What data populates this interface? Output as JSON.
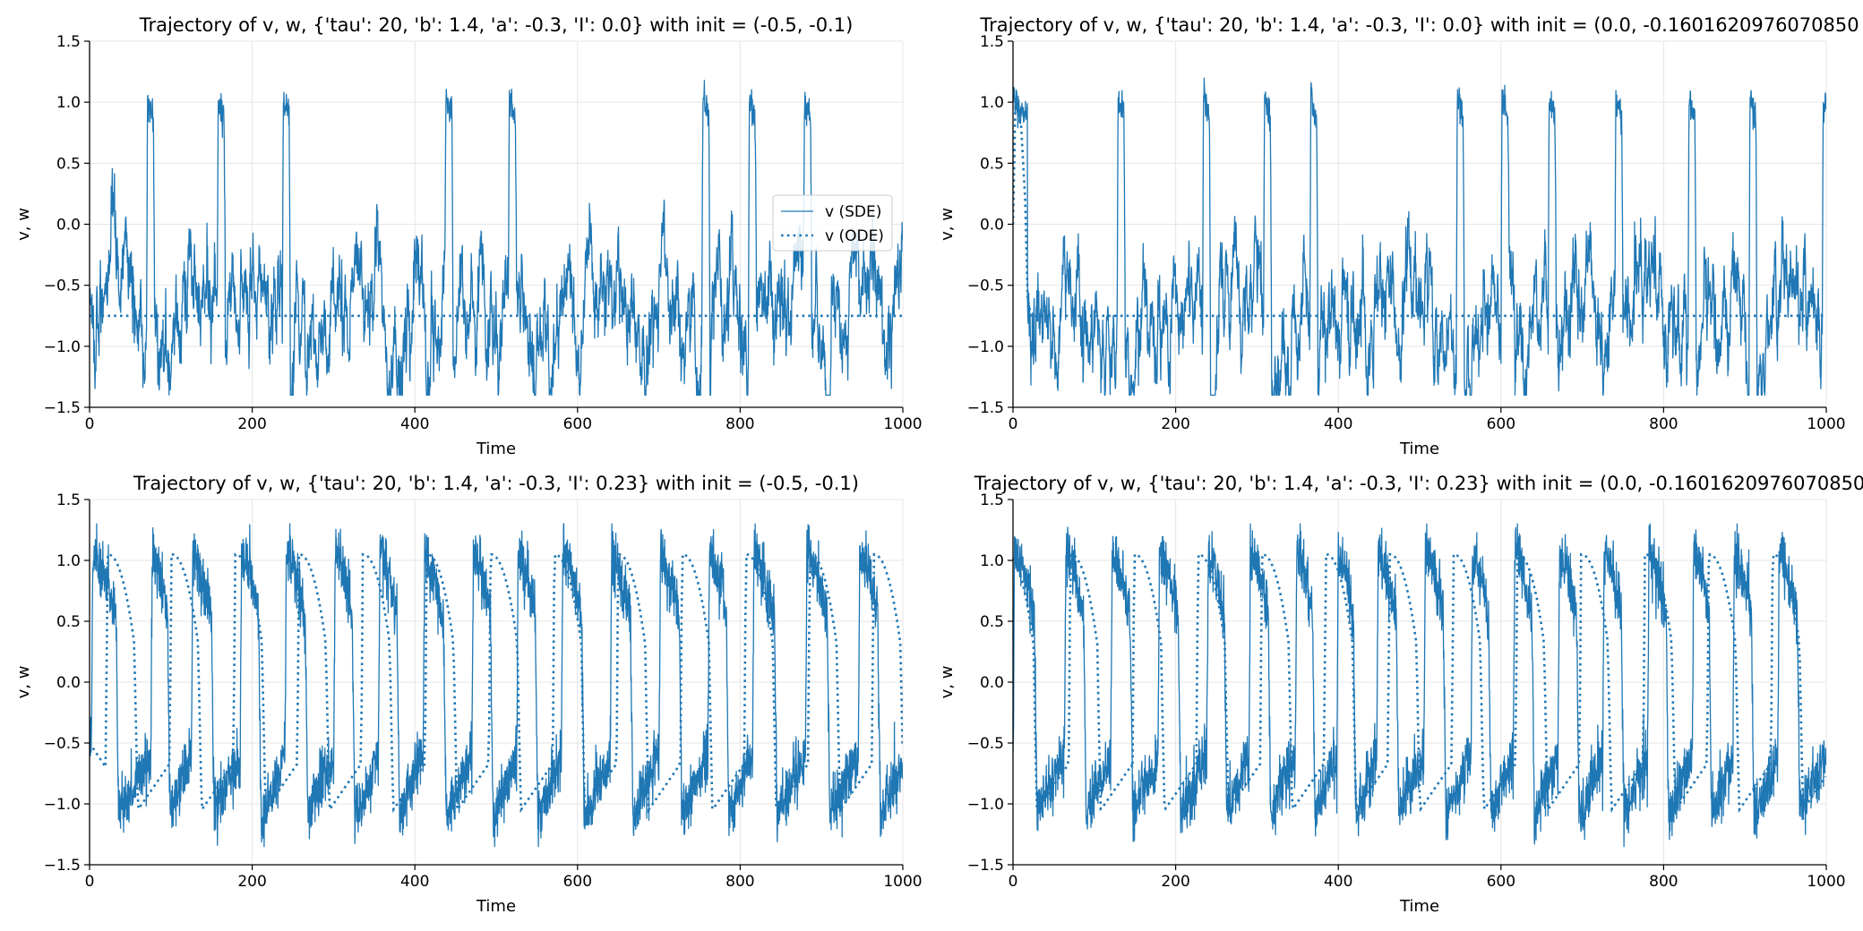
{
  "colors": {
    "line": "#1f77b4",
    "grid": "#e5e5e5",
    "axis": "#000000"
  },
  "chart_data": [
    {
      "type": "line",
      "title": "Trajectory of v, w, {'tau': 20, 'b': 1.4, 'a': -0.3, 'I': 0.0} with init = (-0.5, -0.1)",
      "xlabel": "Time",
      "ylabel": "v, w",
      "xlim": [
        0,
        1000
      ],
      "ylim": [
        -1.5,
        1.5
      ],
      "xticks": [
        0,
        200,
        400,
        600,
        800,
        1000
      ],
      "yticks": [
        -1.5,
        -1.0,
        -0.5,
        0.0,
        0.5,
        1.0,
        1.5
      ],
      "grid": true,
      "legend": {
        "position": "center-right",
        "entries": [
          "v (SDE)",
          "v (ODE)"
        ]
      },
      "series": [
        {
          "name": "v (SDE)",
          "style": "solid",
          "generator": "noisy_spikes",
          "baseline": -0.75,
          "noise": 0.12,
          "spike_times": [
            70,
            157,
            237,
            437,
            515,
            753,
            810,
            878
          ],
          "spike_peak": 1.05,
          "spike_width": 10
        },
        {
          "name": "v (ODE)",
          "style": "dotted",
          "x": [
            0,
            1000
          ],
          "y": [
            -0.75,
            -0.75
          ]
        }
      ]
    },
    {
      "type": "line",
      "title": "Trajectory of v, w, {'tau': 20, 'b': 1.4, 'a': -0.3, 'I': 0.0} with init = (0.0, -0.1601620976070850",
      "xlabel": "Time",
      "ylabel": "v, w",
      "xlim": [
        0,
        1000
      ],
      "ylim": [
        -1.5,
        1.5
      ],
      "xticks": [
        0,
        200,
        400,
        600,
        800,
        1000
      ],
      "yticks": [
        -1.5,
        -1.0,
        -0.5,
        0.0,
        0.5,
        1.0,
        1.5
      ],
      "grid": true,
      "series": [
        {
          "name": "v (SDE)",
          "style": "solid",
          "generator": "noisy_spikes",
          "baseline": -0.75,
          "noise": 0.12,
          "start_spike": true,
          "spike_times": [
            128,
            233,
            308,
            365,
            545,
            600,
            658,
            740,
            830,
            905,
            995
          ],
          "spike_peak": 1.05,
          "spike_width": 10
        },
        {
          "name": "v (ODE)",
          "style": "dotted",
          "x": [
            0,
            3,
            10,
            15,
            18,
            22,
            1000
          ],
          "y": [
            0.0,
            1.0,
            0.8,
            0.2,
            -0.6,
            -0.75,
            -0.75
          ]
        }
      ]
    },
    {
      "type": "line",
      "title": "Trajectory of v, w, {'tau': 20, 'b': 1.4, 'a': -0.3, 'I': 0.23} with init = (-0.5, -0.1)",
      "xlabel": "Time",
      "ylabel": "v, w",
      "xlim": [
        0,
        1000
      ],
      "ylim": [
        -1.5,
        1.5
      ],
      "xticks": [
        0,
        200,
        400,
        600,
        800,
        1000
      ],
      "yticks": [
        -1.5,
        -1.0,
        -0.5,
        0.0,
        0.5,
        1.0,
        1.5
      ],
      "grid": true,
      "series": [
        {
          "name": "v (SDE)",
          "style": "solid",
          "generator": "noisy_osc",
          "noise": 0.12,
          "spike_times": [
            2,
            75,
            125,
            185,
            240,
            300,
            355,
            410,
            470,
            525,
            580,
            640,
            700,
            760,
            815,
            880,
            945
          ]
        },
        {
          "name": "v (ODE)",
          "style": "dotted",
          "generator": "relaxation",
          "x0": 0,
          "period": 78.5,
          "first_jump": 20
        }
      ]
    },
    {
      "type": "line",
      "title": "Trajectory of v, w, {'tau': 20, 'b': 1.4, 'a': -0.3, 'I': 0.23} with init = (0.0, -0.1601620976070850",
      "xlabel": "Time",
      "ylabel": "v, w",
      "xlim": [
        0,
        1000
      ],
      "ylim": [
        -1.5,
        1.5
      ],
      "xticks": [
        0,
        200,
        400,
        600,
        800,
        1000
      ],
      "yticks": [
        -1.5,
        -1.0,
        -0.5,
        0.0,
        0.5,
        1.0,
        1.5
      ],
      "grid": true,
      "series": [
        {
          "name": "v (SDE)",
          "style": "solid",
          "generator": "noisy_osc",
          "noise": 0.12,
          "spike_times": [
            0,
            63,
            120,
            178,
            238,
            290,
            347,
            398,
            447,
            505,
            563,
            615,
            670,
            725,
            780,
            835,
            885,
            940
          ]
        },
        {
          "name": "v (ODE)",
          "style": "dotted",
          "generator": "relaxation",
          "x0": 0,
          "period": 78.5,
          "first_jump": -10
        }
      ]
    }
  ]
}
